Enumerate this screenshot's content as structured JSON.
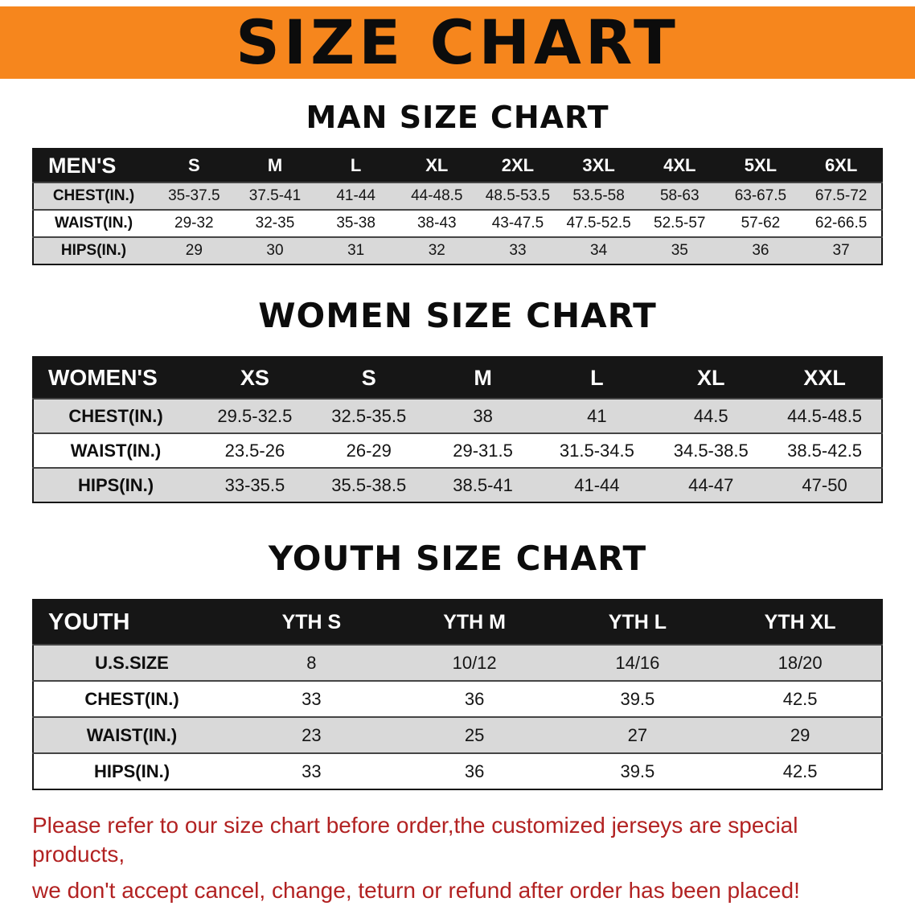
{
  "banner": {
    "title": "SIZE CHART",
    "bg_color": "#f6861d"
  },
  "chart_data": [
    {
      "type": "table",
      "title": "MAN SIZE CHART",
      "header": [
        "MEN'S",
        "S",
        "M",
        "L",
        "XL",
        "2XL",
        "3XL",
        "4XL",
        "5XL",
        "6XL"
      ],
      "rows": [
        [
          "CHEST(IN.)",
          "35-37.5",
          "37.5-41",
          "41-44",
          "44-48.5",
          "48.5-53.5",
          "53.5-58",
          "58-63",
          "63-67.5",
          "67.5-72"
        ],
        [
          "WAIST(IN.)",
          "29-32",
          "32-35",
          "35-38",
          "38-43",
          "43-47.5",
          "47.5-52.5",
          "52.5-57",
          "57-62",
          "62-66.5"
        ],
        [
          "HIPS(IN.)",
          "29",
          "30",
          "31",
          "32",
          "33",
          "34",
          "35",
          "36",
          "37"
        ]
      ]
    },
    {
      "type": "table",
      "title": "WOMEN SIZE CHART",
      "header": [
        "WOMEN'S",
        "XS",
        "S",
        "M",
        "L",
        "XL",
        "XXL"
      ],
      "rows": [
        [
          "CHEST(IN.)",
          "29.5-32.5",
          "32.5-35.5",
          "38",
          "41",
          "44.5",
          "44.5-48.5"
        ],
        [
          "WAIST(IN.)",
          "23.5-26",
          "26-29",
          "29-31.5",
          "31.5-34.5",
          "34.5-38.5",
          "38.5-42.5"
        ],
        [
          "HIPS(IN.)",
          "33-35.5",
          "35.5-38.5",
          "38.5-41",
          "41-44",
          "44-47",
          "47-50"
        ]
      ]
    },
    {
      "type": "table",
      "title": "YOUTH SIZE CHART",
      "header": [
        "YOUTH",
        "YTH S",
        "YTH M",
        "YTH L",
        "YTH XL"
      ],
      "rows": [
        [
          "U.S.SIZE",
          "8",
          "10/12",
          "14/16",
          "18/20"
        ],
        [
          "CHEST(IN.)",
          "33",
          "36",
          "39.5",
          "42.5"
        ],
        [
          "WAIST(IN.)",
          "23",
          "25",
          "27",
          "29"
        ],
        [
          "HIPS(IN.)",
          "33",
          "36",
          "39.5",
          "42.5"
        ]
      ]
    }
  ],
  "footer": {
    "line1": "Please refer to our size chart before order,the customized jerseys are special products,",
    "line2": "we don't accept cancel, change, teturn or refund after order has been placed!",
    "color": "#b22222"
  }
}
